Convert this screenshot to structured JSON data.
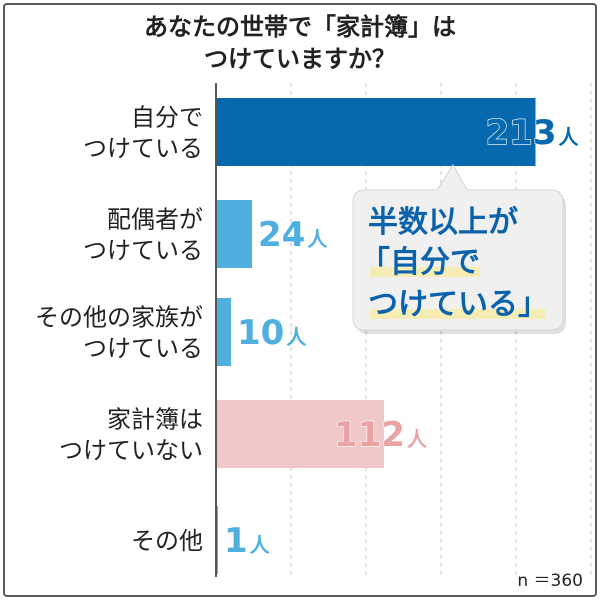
{
  "title_line1": "あなたの世帯で「家計簿」は",
  "title_line2": "つけていますか？",
  "sample": "n ＝360",
  "callout": {
    "line1": "半数以上が",
    "line2": "「自分で",
    "line3": "つけている」"
  },
  "colors": {
    "self": "#0668ae",
    "other": "#4fb0e0",
    "none": "#f1c8c8",
    "none_text": "#e9a3a3",
    "callout_text": "#0a62ad",
    "highlight": "#f6edb4"
  },
  "chart_data": {
    "type": "bar",
    "orientation": "horizontal",
    "title": "あなたの世帯で「家計簿」はつけていますか？",
    "unit": "人",
    "xlim": [
      0,
      360
    ],
    "grid": true,
    "categories": [
      [
        "自分で",
        "つけている"
      ],
      [
        "配偶者が",
        "つけている"
      ],
      [
        "その他の家族が",
        "つけている"
      ],
      [
        "家計簿は",
        "つけていない"
      ],
      [
        "その他"
      ]
    ],
    "values": [
      213,
      24,
      10,
      112,
      1
    ]
  }
}
